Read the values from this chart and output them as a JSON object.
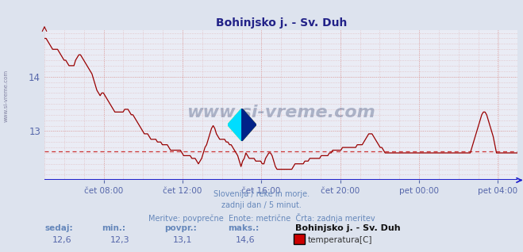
{
  "title": "Bohinjsko j. - Sv. Duh",
  "bg_color": "#dde3ee",
  "plot_bg_color": "#eaecf5",
  "line_color": "#990000",
  "grid_color": "#ddaaaa",
  "axis_color": "#2222cc",
  "dashed_line_color": "#cc3333",
  "dashed_line_value": 12.625,
  "ylim": [
    12.1,
    14.85
  ],
  "yticks": [
    13,
    14
  ],
  "tick_color": "#5566aa",
  "title_color": "#222288",
  "title_fontsize": 10,
  "footer_color": "#6688bb",
  "footer_lines": [
    "Slovenija / reke in morje.",
    "zadnji dan / 5 minut.",
    "Meritve: povprečne  Enote: metrične  Črta: zadnja meritev"
  ],
  "bottom_labels": [
    "sedaj:",
    "min.:",
    "povpr.:",
    "maks.:"
  ],
  "bottom_values": [
    "12,6",
    "12,3",
    "13,1",
    "14,6"
  ],
  "bottom_station": "Bohinjsko j. - Sv. Duh",
  "bottom_measurement": "temperatura[C]",
  "legend_color": "#cc0000",
  "xtick_labels": [
    "čet 08:00",
    "čet 12:00",
    "čet 16:00",
    "čet 20:00",
    "pet 00:00",
    "pet 04:00"
  ],
  "xtick_positions": [
    0.125,
    0.291,
    0.458,
    0.625,
    0.791,
    0.958
  ],
  "watermark": "www.si-vreme.com",
  "temperature_data": [
    14.7,
    14.7,
    14.65,
    14.6,
    14.55,
    14.5,
    14.5,
    14.5,
    14.5,
    14.45,
    14.4,
    14.35,
    14.3,
    14.3,
    14.25,
    14.2,
    14.2,
    14.2,
    14.2,
    14.3,
    14.35,
    14.4,
    14.4,
    14.35,
    14.3,
    14.25,
    14.2,
    14.15,
    14.1,
    14.05,
    13.95,
    13.85,
    13.75,
    13.7,
    13.65,
    13.7,
    13.7,
    13.65,
    13.6,
    13.55,
    13.5,
    13.45,
    13.4,
    13.35,
    13.35,
    13.35,
    13.35,
    13.35,
    13.35,
    13.4,
    13.4,
    13.4,
    13.35,
    13.3,
    13.3,
    13.25,
    13.2,
    13.15,
    13.1,
    13.05,
    13.0,
    12.95,
    12.95,
    12.95,
    12.9,
    12.85,
    12.85,
    12.85,
    12.85,
    12.8,
    12.8,
    12.8,
    12.75,
    12.75,
    12.75,
    12.75,
    12.7,
    12.65,
    12.65,
    12.65,
    12.65,
    12.65,
    12.65,
    12.65,
    12.6,
    12.55,
    12.55,
    12.55,
    12.55,
    12.55,
    12.5,
    12.5,
    12.5,
    12.45,
    12.4,
    12.45,
    12.5,
    12.6,
    12.7,
    12.75,
    12.85,
    12.95,
    13.05,
    13.1,
    13.05,
    12.95,
    12.9,
    12.85,
    12.85,
    12.85,
    12.85,
    12.8,
    12.8,
    12.75,
    12.75,
    12.7,
    12.65,
    12.6,
    12.55,
    12.45,
    12.35,
    12.45,
    12.5,
    12.6,
    12.55,
    12.5,
    12.5,
    12.5,
    12.5,
    12.45,
    12.45,
    12.45,
    12.45,
    12.4,
    12.4,
    12.5,
    12.55,
    12.6,
    12.6,
    12.55,
    12.45,
    12.35,
    12.3,
    12.3,
    12.3,
    12.3,
    12.3,
    12.3,
    12.3,
    12.3,
    12.3,
    12.3,
    12.35,
    12.4,
    12.4,
    12.4,
    12.4,
    12.4,
    12.4,
    12.45,
    12.45,
    12.45,
    12.5,
    12.5,
    12.5,
    12.5,
    12.5,
    12.5,
    12.5,
    12.55,
    12.55,
    12.55,
    12.55,
    12.55,
    12.6,
    12.6,
    12.65,
    12.65,
    12.65,
    12.65,
    12.65,
    12.65,
    12.7,
    12.7,
    12.7,
    12.7,
    12.7,
    12.7,
    12.7,
    12.7,
    12.7,
    12.75,
    12.75,
    12.75,
    12.75,
    12.8,
    12.85,
    12.9,
    12.95,
    12.95,
    12.95,
    12.9,
    12.85,
    12.8,
    12.75,
    12.7,
    12.7,
    12.65,
    12.6,
    12.6,
    12.6,
    12.6,
    12.6,
    12.6,
    12.6,
    12.6,
    12.6,
    12.6,
    12.6,
    12.6,
    12.6,
    12.6,
    12.6,
    12.6,
    12.6,
    12.6,
    12.6,
    12.6,
    12.6,
    12.6,
    12.6,
    12.6,
    12.6,
    12.6,
    12.6,
    12.6,
    12.6,
    12.6,
    12.6,
    12.6,
    12.6,
    12.6,
    12.6,
    12.6,
    12.6,
    12.6,
    12.6,
    12.6,
    12.6,
    12.6,
    12.6,
    12.6,
    12.6,
    12.6,
    12.6,
    12.6,
    12.6,
    12.6,
    12.6,
    12.6,
    12.6,
    12.7,
    12.8,
    12.9,
    13.0,
    13.1,
    13.2,
    13.3,
    13.35,
    13.35,
    13.3,
    13.2,
    13.1,
    13.0,
    12.9,
    12.75,
    12.6,
    12.6,
    12.6,
    12.6,
    12.6,
    12.6,
    12.6,
    12.6,
    12.6,
    12.6,
    12.6,
    12.6,
    12.6,
    12.6
  ]
}
